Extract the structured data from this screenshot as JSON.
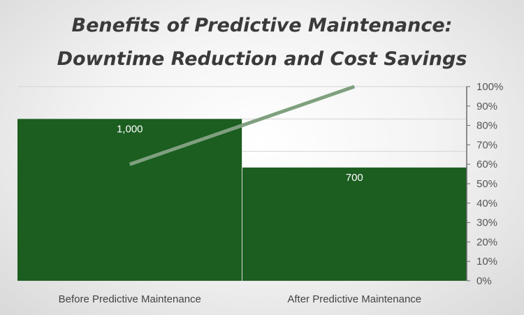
{
  "chart_data": {
    "type": "bar",
    "title_line1": "Benefits of Predictive Maintenance:",
    "title_line2": "Downtime Reduction and Cost Savings",
    "categories": [
      "Before Predictive Maintenance",
      "After Predictive Maintenance"
    ],
    "series": [
      {
        "type": "bar",
        "values": [
          1000,
          700
        ],
        "data_labels": [
          "1,000",
          "700"
        ],
        "color": "#1b5e20"
      },
      {
        "type": "line",
        "axis": "secondary",
        "values": [
          60,
          100
        ],
        "color": "#7fa07f"
      }
    ],
    "y_primary_range": [
      0,
      1200
    ],
    "y_secondary_range": [
      0,
      100
    ],
    "y_secondary_ticks": [
      "0%",
      "10%",
      "20%",
      "30%",
      "40%",
      "50%",
      "60%",
      "70%",
      "80%",
      "90%",
      "100%"
    ],
    "grid": true,
    "legend": "none"
  }
}
